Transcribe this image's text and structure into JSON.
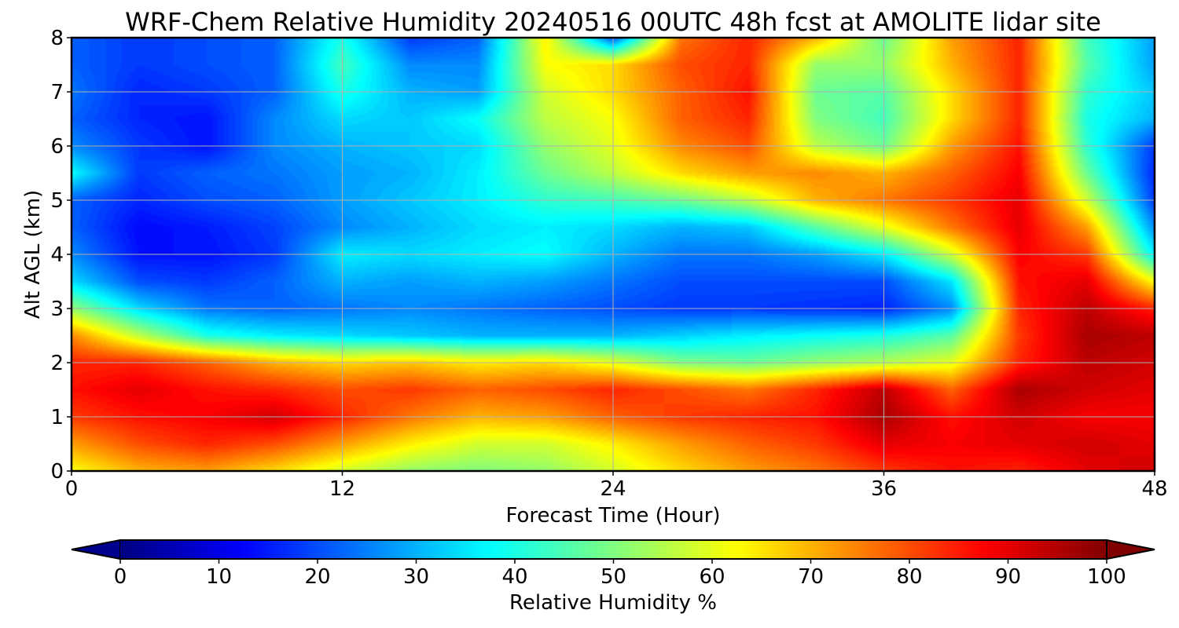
{
  "chart_data": {
    "type": "heatmap",
    "title": "WRF-Chem Relative Humidity 20240516 00UTC 48h fcst at AMOLITE lidar site",
    "xlabel": "Forecast Time (Hour)",
    "ylabel": "Alt AGL (km)",
    "xlim": [
      0,
      48
    ],
    "ylim": [
      0,
      8
    ],
    "xticks": [
      "0",
      "12",
      "24",
      "36",
      "48"
    ],
    "yticks": [
      "0",
      "1",
      "2",
      "3",
      "4",
      "5",
      "6",
      "7",
      "8"
    ],
    "grid": true,
    "colormap": "jet",
    "colorbar": {
      "label": "Relative Humidity %",
      "range": [
        0,
        100
      ],
      "ticks": [
        "0",
        "10",
        "20",
        "30",
        "40",
        "50",
        "60",
        "70",
        "80",
        "90",
        "100"
      ],
      "extend": "both",
      "under_color": "#00008f",
      "over_color": "#7f0000"
    },
    "x": [
      0,
      3,
      6,
      9,
      12,
      15,
      18,
      21,
      24,
      27,
      30,
      33,
      36,
      39,
      42,
      45,
      48
    ],
    "y": [
      0,
      0.5,
      1,
      1.5,
      2,
      2.5,
      3,
      3.5,
      4,
      4.5,
      5,
      5.5,
      6,
      6.5,
      7,
      7.5,
      8
    ],
    "z": [
      [
        62,
        70,
        72,
        66,
        58,
        52,
        50,
        52,
        58,
        66,
        72,
        76,
        82,
        86,
        84,
        90,
        92
      ],
      [
        72,
        80,
        84,
        80,
        72,
        64,
        58,
        58,
        64,
        72,
        78,
        82,
        90,
        88,
        90,
        92,
        90
      ],
      [
        82,
        86,
        88,
        92,
        84,
        76,
        70,
        72,
        78,
        82,
        84,
        86,
        96,
        86,
        92,
        88,
        88
      ],
      [
        86,
        90,
        86,
        84,
        80,
        82,
        78,
        80,
        84,
        80,
        76,
        84,
        94,
        78,
        96,
        92,
        90
      ],
      [
        84,
        84,
        78,
        70,
        66,
        68,
        64,
        66,
        60,
        50,
        48,
        52,
        55,
        60,
        84,
        94,
        92
      ],
      [
        74,
        56,
        40,
        36,
        34,
        32,
        30,
        30,
        30,
        33,
        36,
        38,
        40,
        46,
        82,
        96,
        94
      ],
      [
        52,
        34,
        24,
        22,
        24,
        26,
        24,
        22,
        20,
        18,
        18,
        17,
        16,
        26,
        84,
        94,
        84
      ],
      [
        34,
        20,
        18,
        22,
        30,
        28,
        30,
        28,
        24,
        20,
        20,
        20,
        20,
        35,
        86,
        90,
        62
      ],
      [
        26,
        14,
        14,
        18,
        36,
        34,
        36,
        38,
        30,
        24,
        24,
        28,
        36,
        58,
        88,
        82,
        36
      ],
      [
        22,
        13,
        15,
        19,
        26,
        30,
        34,
        36,
        34,
        30,
        32,
        46,
        60,
        76,
        90,
        72,
        26
      ],
      [
        22,
        16,
        20,
        22,
        28,
        32,
        36,
        42,
        44,
        48,
        56,
        70,
        76,
        82,
        90,
        58,
        18
      ],
      [
        38,
        18,
        22,
        24,
        28,
        30,
        36,
        48,
        56,
        66,
        72,
        74,
        70,
        78,
        88,
        48,
        16
      ],
      [
        26,
        18,
        14,
        26,
        30,
        32,
        34,
        52,
        60,
        74,
        80,
        56,
        48,
        72,
        86,
        42,
        18
      ],
      [
        22,
        16,
        14,
        26,
        34,
        32,
        38,
        56,
        62,
        78,
        84,
        50,
        44,
        66,
        84,
        40,
        30
      ],
      [
        24,
        16,
        18,
        22,
        40,
        30,
        28,
        58,
        66,
        78,
        86,
        48,
        46,
        66,
        84,
        42,
        32
      ],
      [
        22,
        18,
        20,
        22,
        44,
        26,
        26,
        62,
        66,
        80,
        84,
        52,
        52,
        70,
        84,
        46,
        28
      ],
      [
        22,
        18,
        20,
        22,
        40,
        18,
        22,
        64,
        20,
        76,
        84,
        70,
        48,
        72,
        84,
        44,
        28
      ]
    ]
  }
}
